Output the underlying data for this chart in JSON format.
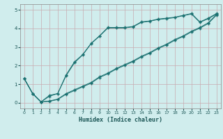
{
  "xlabel": "Humidex (Indice chaleur)",
  "ylabel": "",
  "xlim": [
    -0.5,
    23.5
  ],
  "ylim": [
    -0.3,
    5.3
  ],
  "xticks": [
    0,
    1,
    2,
    3,
    4,
    5,
    6,
    7,
    8,
    9,
    10,
    11,
    12,
    13,
    14,
    15,
    16,
    17,
    18,
    19,
    20,
    21,
    22,
    23
  ],
  "yticks": [
    0,
    1,
    2,
    3,
    4,
    5
  ],
  "bg_color": "#d0eded",
  "grid_color": "#c8aab0",
  "line_color": "#1a7070",
  "line1_x": [
    0,
    1,
    2,
    3,
    4,
    5,
    6,
    7,
    8,
    9,
    10,
    11,
    12,
    13,
    14,
    15,
    16,
    17,
    18,
    19,
    20,
    21,
    22,
    23
  ],
  "line1_y": [
    1.3,
    0.5,
    0.05,
    0.4,
    0.5,
    1.5,
    2.2,
    2.6,
    3.2,
    3.6,
    4.05,
    4.05,
    4.05,
    4.1,
    4.35,
    4.4,
    4.5,
    4.55,
    4.6,
    4.7,
    4.8,
    4.35,
    4.55,
    4.8
  ],
  "line2_x": [
    0,
    1,
    2,
    3,
    4,
    5,
    6,
    7,
    8,
    9,
    10,
    11,
    12,
    13,
    14,
    15,
    16,
    17,
    18,
    19,
    20,
    21,
    22,
    23
  ],
  "line2_y": [
    1.3,
    0.5,
    0.05,
    0.35,
    0.5,
    1.45,
    2.15,
    2.58,
    3.18,
    3.58,
    4.02,
    4.02,
    4.02,
    4.08,
    4.32,
    4.38,
    4.48,
    4.52,
    4.58,
    4.68,
    4.77,
    4.32,
    4.52,
    4.77
  ],
  "line3_x": [
    0,
    1,
    2,
    3,
    4,
    5,
    6,
    7,
    8,
    9,
    10,
    11,
    12,
    13,
    14,
    15,
    16,
    17,
    18,
    19,
    20,
    21,
    22,
    23
  ],
  "line3_y": [
    1.3,
    0.5,
    0.05,
    0.1,
    0.2,
    0.5,
    0.7,
    0.9,
    1.1,
    1.4,
    1.6,
    1.85,
    2.05,
    2.25,
    2.5,
    2.7,
    2.95,
    3.15,
    3.4,
    3.6,
    3.85,
    4.05,
    4.3,
    4.75
  ],
  "line4_x": [
    0,
    1,
    2,
    3,
    4,
    5,
    6,
    7,
    8,
    9,
    10,
    11,
    12,
    13,
    14,
    15,
    16,
    17,
    18,
    19,
    20,
    21,
    22,
    23
  ],
  "line4_y": [
    1.3,
    0.5,
    0.05,
    0.08,
    0.18,
    0.46,
    0.66,
    0.86,
    1.06,
    1.36,
    1.56,
    1.81,
    2.01,
    2.21,
    2.46,
    2.66,
    2.91,
    3.11,
    3.36,
    3.56,
    3.81,
    4.01,
    4.26,
    4.72
  ]
}
